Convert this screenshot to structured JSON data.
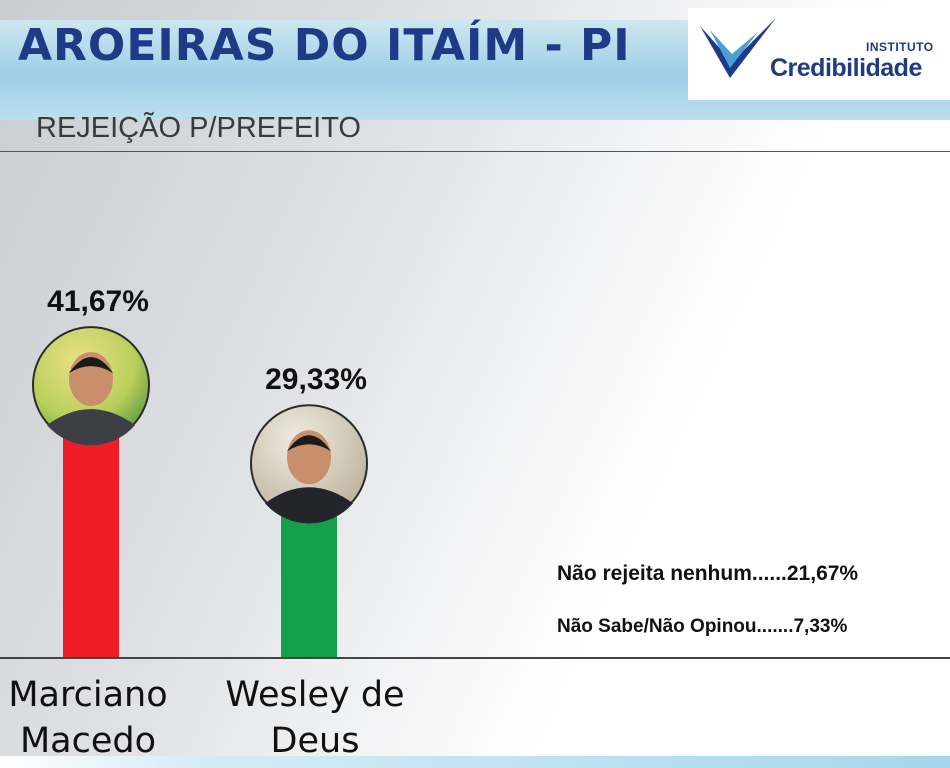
{
  "header": {
    "title": "AROEIRAS DO ITAÍM - PI",
    "subtitle": "REJEIÇÃO P/PREFEITO"
  },
  "logo": {
    "small_text": "INSTITUTO",
    "main_text": "Credibilidade"
  },
  "chart_data": {
    "type": "bar",
    "categories": [
      "Marciano Macedo",
      "Wesley de Deus"
    ],
    "values": [
      41.67,
      29.33
    ],
    "value_labels": [
      "41,67%",
      "29,33%"
    ],
    "colors": [
      "#ee1c24",
      "#14a04a"
    ],
    "candidate_names": [
      [
        "Marciano",
        "Macedo"
      ],
      [
        "Wesley de",
        "Deus"
      ]
    ],
    "ylim": [
      0,
      60
    ],
    "notes": [
      {
        "label": "Não rejeita nenhum......21,67%",
        "value": 21.67
      },
      {
        "label": "Não Sabe/Não Opinou.......7,33%",
        "value": 7.33
      }
    ]
  }
}
